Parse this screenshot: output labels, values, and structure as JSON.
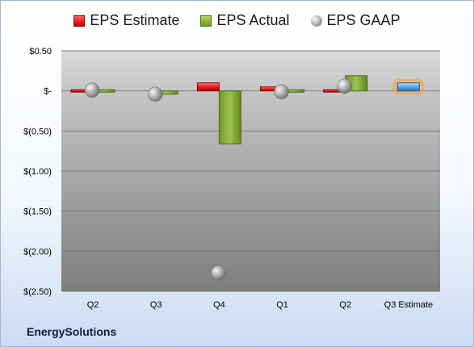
{
  "legend": {
    "estimate_label": "EPS Estimate",
    "actual_label": "EPS Actual",
    "gaap_label": "EPS GAAP"
  },
  "company": "EnergySolutions",
  "colors": {
    "estimate": "#cc1f1f",
    "actual": "#7aa832",
    "gaap": "#a0a0a0",
    "estimate_future": "#5a9fe0",
    "highlight": "#f2a33a"
  },
  "chart_data": {
    "type": "bar",
    "categories": [
      "Q2",
      "Q3",
      "Q4",
      "Q1",
      "Q2",
      "Q3 Estimate"
    ],
    "ylim": [
      -2.5,
      0.5
    ],
    "y_ticks": [
      0.5,
      0,
      -0.5,
      -1.0,
      -1.5,
      -2.0,
      -2.5
    ],
    "y_tick_labels": [
      "$0.50",
      "$-",
      "$(0.50)",
      "$(1.00)",
      "$(1.50)",
      "$(2.00)",
      "$(2.50)"
    ],
    "grid": true,
    "legend_position": "top",
    "series": [
      {
        "name": "EPS Estimate",
        "values": [
          -0.01,
          null,
          0.1,
          0.05,
          -0.02,
          0.1
        ]
      },
      {
        "name": "EPS Actual",
        "values": [
          -0.01,
          -0.04,
          -0.66,
          0.02,
          0.19,
          null
        ]
      },
      {
        "name": "EPS GAAP",
        "values": [
          0.01,
          -0.04,
          -2.27,
          -0.01,
          0.06,
          null
        ]
      }
    ]
  }
}
